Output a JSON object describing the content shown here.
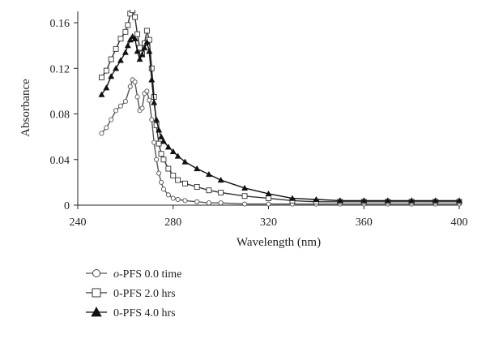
{
  "chart_data": {
    "type": "line",
    "xlabel": "Wavelength (nm)",
    "ylabel": "Absorbance",
    "xlim": [
      240,
      400
    ],
    "ylim": [
      0,
      0.17
    ],
    "xticks": [
      240,
      280,
      320,
      360,
      400
    ],
    "yticks": [
      0,
      0.04,
      0.08,
      0.12,
      0.16
    ],
    "xtick_labels": [
      "240",
      "280",
      "320",
      "360",
      "400"
    ],
    "ytick_labels": [
      "0",
      "0.04",
      "0.08",
      "0.12",
      "0.16"
    ],
    "grid": false,
    "legend_position": "bottom-left",
    "series": [
      {
        "name_prefix": "o",
        "name_rest": "-PFS 0.0 time",
        "marker": "circle-open",
        "color": "#555555",
        "x": [
          250,
          252,
          254,
          256,
          258,
          260,
          262,
          263,
          264,
          265,
          266,
          267,
          268,
          269,
          270,
          271,
          272,
          273,
          274,
          275,
          276,
          278,
          280,
          282,
          285,
          290,
          295,
          300,
          310,
          320,
          330,
          340,
          350,
          360,
          370,
          380,
          390,
          400
        ],
        "y": [
          0.063,
          0.068,
          0.075,
          0.083,
          0.087,
          0.091,
          0.104,
          0.11,
          0.108,
          0.095,
          0.083,
          0.085,
          0.098,
          0.1,
          0.092,
          0.075,
          0.055,
          0.04,
          0.028,
          0.02,
          0.014,
          0.009,
          0.006,
          0.005,
          0.004,
          0.003,
          0.002,
          0.002,
          0.001,
          0.001,
          0.001,
          0.001,
          0.001,
          0.001,
          0.001,
          0.001,
          0.001,
          0.001
        ]
      },
      {
        "name": "0-PFS 2.0 hrs",
        "marker": "square-open",
        "color": "#333333",
        "x": [
          250,
          252,
          254,
          256,
          258,
          260,
          261,
          262,
          263,
          264,
          265,
          266,
          267,
          268,
          269,
          270,
          271,
          272,
          273,
          274,
          275,
          276,
          278,
          280,
          282,
          285,
          290,
          295,
          300,
          310,
          320,
          330,
          340,
          350,
          360,
          370,
          380,
          390,
          400
        ],
        "y": [
          0.112,
          0.118,
          0.128,
          0.137,
          0.146,
          0.152,
          0.158,
          0.168,
          0.171,
          0.165,
          0.15,
          0.138,
          0.133,
          0.142,
          0.153,
          0.145,
          0.12,
          0.095,
          0.07,
          0.054,
          0.045,
          0.04,
          0.032,
          0.026,
          0.022,
          0.019,
          0.016,
          0.013,
          0.011,
          0.008,
          0.006,
          0.004,
          0.003,
          0.003,
          0.003,
          0.003,
          0.003,
          0.003,
          0.003
        ]
      },
      {
        "name": "0-PFS 4.0 hrs",
        "marker": "triangle-filled",
        "color": "#111111",
        "x": [
          250,
          252,
          254,
          256,
          258,
          260,
          261,
          262,
          263,
          264,
          265,
          266,
          267,
          268,
          269,
          270,
          271,
          272,
          273,
          274,
          275,
          276,
          278,
          280,
          282,
          285,
          290,
          295,
          300,
          310,
          320,
          330,
          340,
          350,
          360,
          370,
          380,
          390,
          400
        ],
        "y": [
          0.097,
          0.103,
          0.113,
          0.12,
          0.127,
          0.134,
          0.14,
          0.145,
          0.148,
          0.146,
          0.135,
          0.128,
          0.132,
          0.138,
          0.143,
          0.135,
          0.11,
          0.09,
          0.075,
          0.066,
          0.06,
          0.056,
          0.051,
          0.047,
          0.043,
          0.038,
          0.032,
          0.027,
          0.022,
          0.015,
          0.01,
          0.006,
          0.005,
          0.004,
          0.004,
          0.004,
          0.004,
          0.004,
          0.004
        ]
      }
    ]
  }
}
